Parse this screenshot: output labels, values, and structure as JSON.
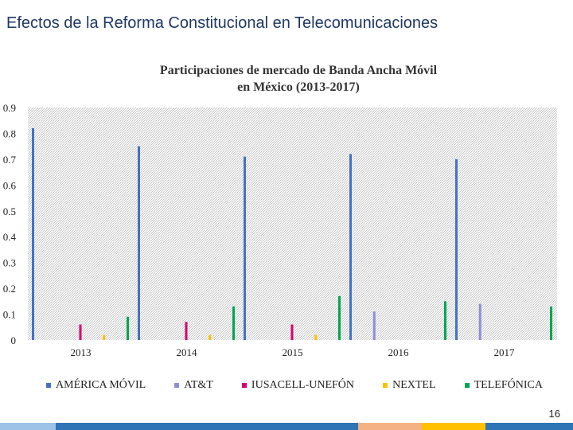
{
  "slide": {
    "title": "Efectos de la Reforma Constitucional en Telecomunicaciones",
    "page_number": "16"
  },
  "colors": {
    "title": "#1f3864",
    "footer": [
      "#9dc3e6",
      "#2e75b6",
      "#2e75b6",
      "#f4b183",
      "#ffc000",
      "#2e75b6"
    ]
  },
  "chart_data": {
    "type": "bar",
    "title": "Participaciones de mercado de Banda Ancha Móvil en México (2013-2017)",
    "title_line1": "Participaciones de mercado de Banda Ancha Móvil",
    "title_line2": "en México (2013-2017)",
    "categories": [
      "2013",
      "2014",
      "2015",
      "2016",
      "2017"
    ],
    "ylim": [
      0,
      0.9
    ],
    "yticks": [
      "0",
      "0.1",
      "0.2",
      "0.3",
      "0.4",
      "0.5",
      "0.6",
      "0.7",
      "0.8",
      "0.9"
    ],
    "grid": true,
    "legend_position": "bottom",
    "series": [
      {
        "name": "AMÉRICA MÓVIL",
        "color": "#4472c4",
        "values": [
          0.82,
          0.75,
          0.71,
          0.72,
          0.7
        ]
      },
      {
        "name": "AT&T",
        "color": "#8e8ed8",
        "values": [
          0,
          0,
          0,
          0.11,
          0.14
        ]
      },
      {
        "name": "IUSACELL-UNEFÓN",
        "color": "#d6006e",
        "values": [
          0.06,
          0.07,
          0.06,
          0,
          0
        ]
      },
      {
        "name": "NEXTEL",
        "color": "#ffc000",
        "values": [
          0.02,
          0.02,
          0.02,
          0,
          0
        ]
      },
      {
        "name": "TELEFÓNICA",
        "color": "#00a651",
        "values": [
          0.09,
          0.13,
          0.17,
          0.15,
          0.13
        ]
      }
    ]
  }
}
